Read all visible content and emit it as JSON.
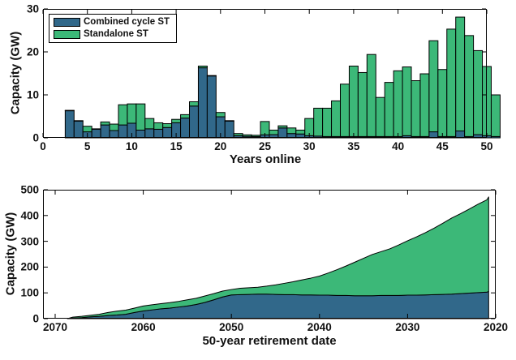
{
  "figure": {
    "background": "#ffffff"
  },
  "colors": {
    "combined_cycle": "#31688a",
    "standalone": "#3cb878",
    "axis": "#111111"
  },
  "legend": {
    "items": [
      {
        "label": "Combined cycle ST",
        "color": "#31688a"
      },
      {
        "label": "Standalone ST",
        "color": "#3cb878"
      }
    ]
  },
  "chart_data": [
    {
      "type": "bar",
      "stacked": true,
      "title": "",
      "xlabel": "Years online",
      "ylabel": "Capacity (GW)",
      "xlim": [
        0,
        50
      ],
      "ylim": [
        0,
        30
      ],
      "xticks": [
        0,
        5,
        10,
        15,
        20,
        25,
        30,
        35,
        40,
        45,
        50
      ],
      "yticks": [
        0,
        10,
        20,
        30
      ],
      "grid": false,
      "legend_position": "top-left",
      "bar_width": 1,
      "categories": [
        3,
        4,
        5,
        6,
        7,
        8,
        9,
        10,
        11,
        12,
        13,
        14,
        15,
        16,
        17,
        18,
        19,
        20,
        21,
        22,
        23,
        24,
        25,
        26,
        27,
        28,
        29,
        30,
        31,
        32,
        33,
        34,
        35,
        36,
        37,
        38,
        39,
        40,
        41,
        42,
        43,
        44,
        45,
        46,
        47,
        48,
        49,
        50,
        51
      ],
      "series": [
        {
          "name": "Combined cycle ST",
          "color": "#31688a",
          "values": [
            6.3,
            3.9,
            1.4,
            2.0,
            3.0,
            1.7,
            3.0,
            3.4,
            1.8,
            2.1,
            2.0,
            2.4,
            3.5,
            4.6,
            7.4,
            16.3,
            14.4,
            4.9,
            3.9,
            0.5,
            0.35,
            0.3,
            0.7,
            0.75,
            2.3,
            1.0,
            0.9,
            0.5,
            0.4,
            0.3,
            0.3,
            0.3,
            0.3,
            0.3,
            0.3,
            0.3,
            0.3,
            0.3,
            0.5,
            0.3,
            0.3,
            1.4,
            0.3,
            0.3,
            1.6,
            0.3,
            0.75,
            0.5,
            0.3
          ]
        },
        {
          "name": "Standalone ST",
          "color": "#3cb878",
          "values": [
            0.1,
            0.1,
            1.3,
            0.1,
            0.7,
            1.5,
            4.7,
            4.5,
            6.1,
            2.4,
            1.5,
            0.9,
            0.8,
            0.8,
            1.0,
            0.4,
            0.1,
            1.0,
            0.1,
            0.5,
            0.35,
            0.3,
            3.1,
            1.05,
            0.5,
            1.3,
            0.9,
            4.0,
            6.5,
            6.6,
            8.3,
            12.2,
            16.4,
            14.9,
            19.1,
            9.1,
            12.6,
            15.3,
            16.0,
            13.0,
            14.6,
            21.2,
            15.6,
            25.0,
            26.5,
            23.5,
            19.55,
            16.1,
            9.7
          ]
        }
      ]
    },
    {
      "type": "area",
      "stacked": true,
      "title": "",
      "xlabel": "50-year retirement date",
      "ylabel": "Capacity (GW)",
      "x_reversed": true,
      "xlim": [
        2071.4,
        2019.9
      ],
      "ylim": [
        0,
        500
      ],
      "xticks": [
        2070,
        2060,
        2050,
        2040,
        2030,
        2020
      ],
      "yticks": [
        0,
        100,
        200,
        300,
        400,
        500
      ],
      "grid": false,
      "x": [
        2068.6,
        2068,
        2067,
        2066,
        2065,
        2064,
        2063,
        2062,
        2061,
        2060,
        2059,
        2058,
        2057,
        2056,
        2055,
        2054,
        2053,
        2052,
        2051,
        2050,
        2049,
        2048,
        2047,
        2046,
        2045,
        2044,
        2043,
        2042,
        2041,
        2040,
        2039,
        2038,
        2037,
        2036,
        2035,
        2034,
        2033,
        2032,
        2031,
        2030,
        2029,
        2028,
        2027,
        2026,
        2025,
        2024,
        2023,
        2022,
        2021,
        2020.8
      ],
      "series": [
        {
          "name": "Combined cycle ST",
          "color": "#31688a",
          "values": [
            0,
            2,
            4,
            7,
            9,
            12,
            14,
            17,
            24,
            30,
            34,
            38,
            41,
            45,
            49,
            55,
            63,
            73,
            84,
            92,
            93,
            94,
            95,
            95,
            94,
            93,
            93,
            92,
            92,
            91,
            91,
            90,
            90,
            89,
            89,
            89,
            90,
            90,
            90,
            91,
            91,
            92,
            93,
            94,
            95,
            97,
            99,
            101,
            103,
            105
          ]
        },
        {
          "name": "Standalone ST (stacked total)",
          "color": "#3cb878",
          "totals": [
            0,
            6,
            9,
            13,
            17,
            24,
            29,
            33,
            41,
            49,
            54,
            58,
            62,
            67,
            73,
            79,
            88,
            97,
            107,
            113,
            118,
            120,
            122,
            126,
            131,
            137,
            143,
            150,
            157,
            165,
            177,
            190,
            204,
            219,
            234,
            249,
            260,
            271,
            286,
            302,
            317,
            333,
            351,
            370,
            390,
            407,
            425,
            444,
            461,
            472
          ]
        }
      ]
    }
  ]
}
